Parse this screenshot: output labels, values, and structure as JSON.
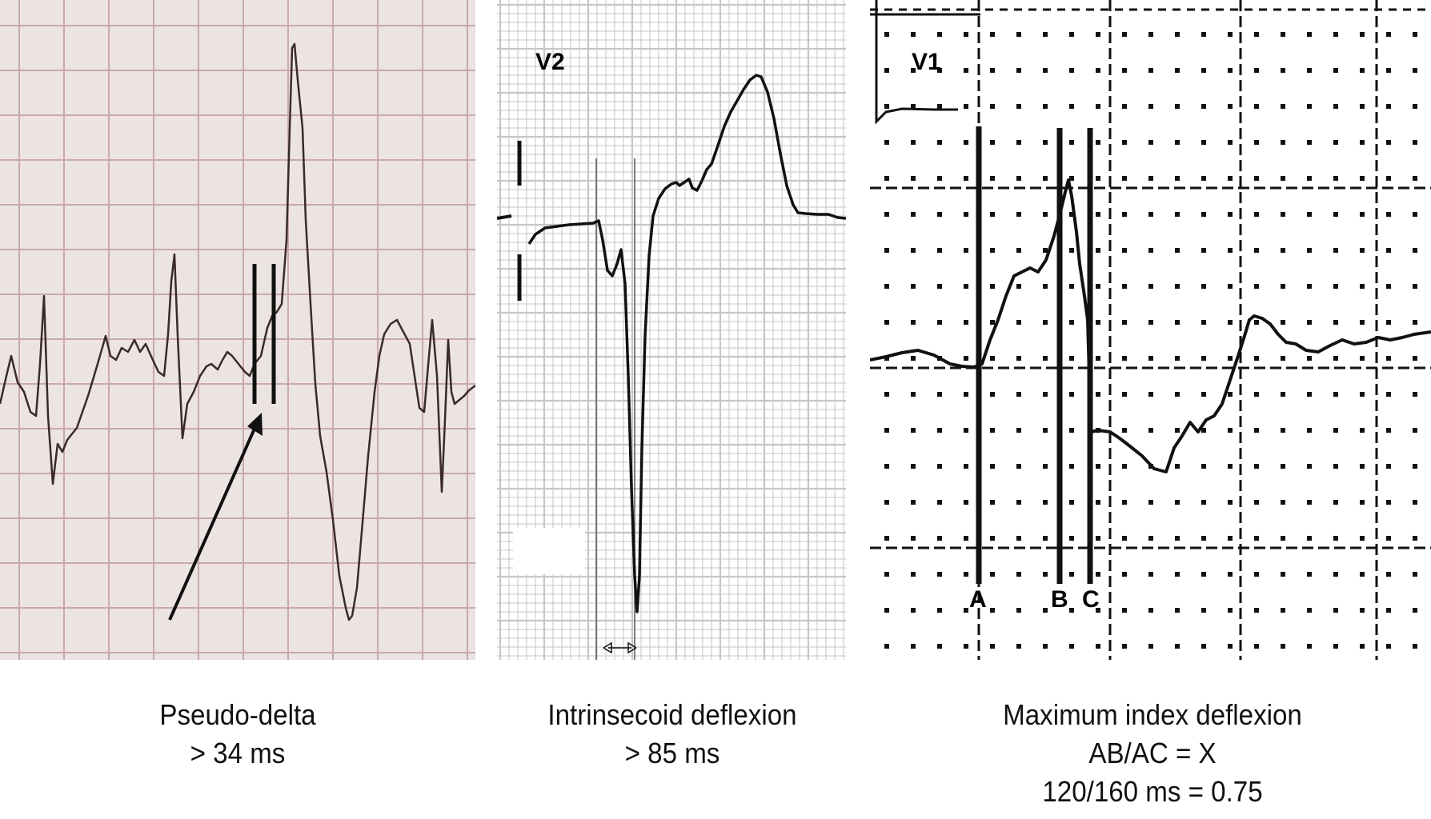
{
  "panels": [
    {
      "caption_title": "Pseudo-delta",
      "caption_value": "> 34 ms"
    },
    {
      "lead_label": "V2",
      "caption_title": "Intrinsecoid deflexion",
      "caption_value": "> 85 ms"
    },
    {
      "lead_label": "V1",
      "point_labels": [
        "A",
        "B",
        "C"
      ],
      "caption_title": "Maximum index deflexion",
      "caption_line2": "AB/AC = X",
      "caption_line3": "120/160 ms = 0.75"
    }
  ],
  "colors": {
    "paper_pink": "#ece4e2",
    "grid_pink": "#c9a8ad",
    "grid_gray": "#c6c6c6",
    "trace": "#1a1a1a"
  }
}
